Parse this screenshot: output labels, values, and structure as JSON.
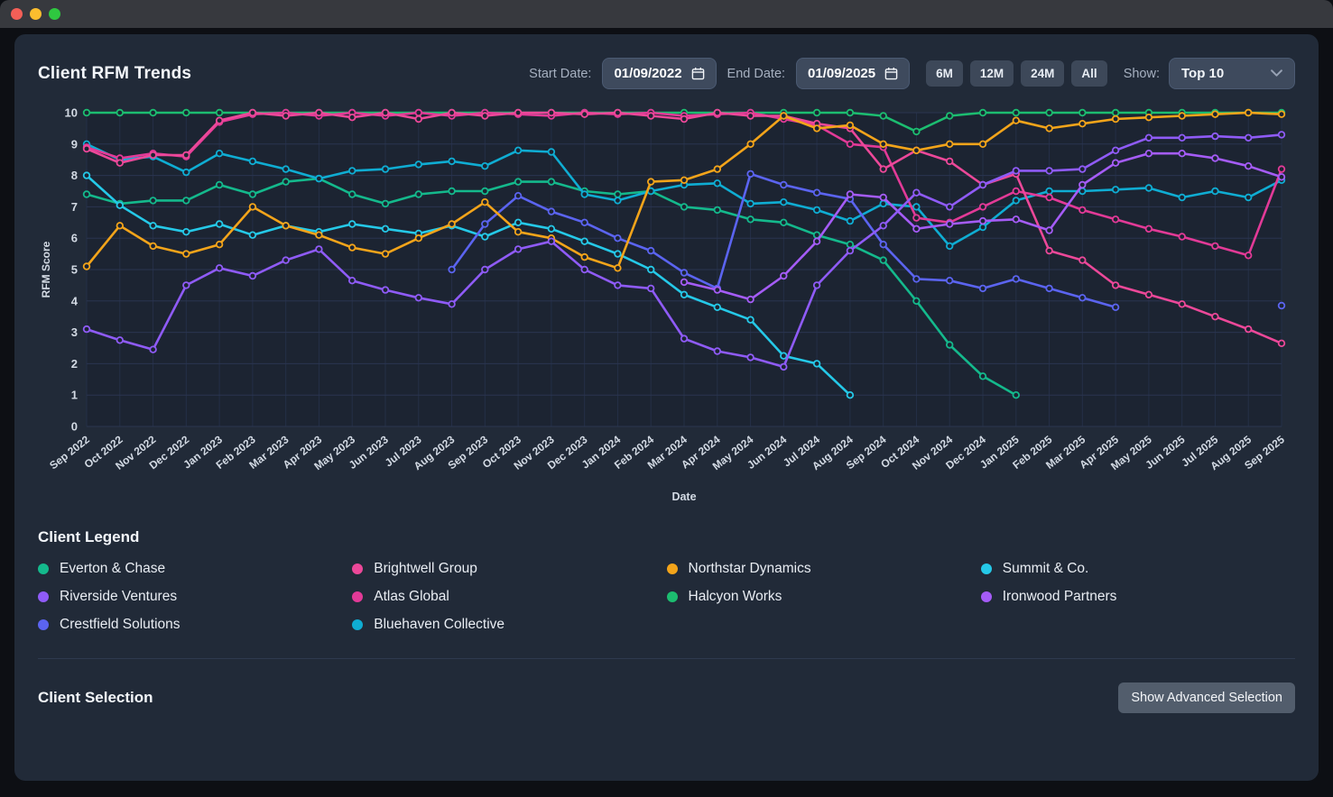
{
  "header": {
    "title": "Client RFM Trends",
    "start_date_label": "Start Date:",
    "start_date_value": "01/09/2022",
    "end_date_label": "End Date:",
    "end_date_value": "01/09/2025",
    "range_buttons": [
      "6M",
      "12M",
      "24M",
      "All"
    ],
    "show_label": "Show:",
    "show_value": "Top 10"
  },
  "chart_data": {
    "type": "line",
    "title": "Client RFM Trends",
    "xlabel": "Date",
    "ylabel": "RFM Score",
    "ylim": [
      0,
      10
    ],
    "yticks": [
      0,
      1,
      2,
      3,
      4,
      5,
      6,
      7,
      8,
      9,
      10
    ],
    "grid": true,
    "x": [
      "Sep 2022",
      "Oct 2022",
      "Nov 2022",
      "Dec 2022",
      "Jan 2023",
      "Feb 2023",
      "Mar 2023",
      "Apr 2023",
      "May 2023",
      "Jun 2023",
      "Jul 2023",
      "Aug 2023",
      "Sep 2023",
      "Oct 2023",
      "Nov 2023",
      "Dec 2023",
      "Jan 2024",
      "Feb 2024",
      "Mar 2024",
      "Apr 2024",
      "May 2024",
      "Jun 2024",
      "Jul 2024",
      "Aug 2024",
      "Sep 2024",
      "Oct 2024",
      "Nov 2024",
      "Dec 2024",
      "Jan 2025",
      "Feb 2025",
      "Mar 2025",
      "Apr 2025",
      "May 2025",
      "Jun 2025",
      "Jul 2025",
      "Aug 2025",
      "Sep 2025"
    ],
    "series": [
      {
        "name": "Halcyon Works",
        "color": "#1cbd70",
        "values": [
          10,
          10,
          10,
          10,
          10,
          10,
          10,
          10,
          10,
          10,
          10,
          10,
          10,
          10,
          10,
          10,
          10,
          10,
          10,
          10,
          10,
          10,
          10,
          10,
          9.9,
          9.4,
          9.9,
          10,
          10,
          10,
          10,
          10,
          10,
          10,
          10,
          10,
          10
        ]
      },
      {
        "name": "Everton & Chase",
        "color": "#14b98c",
        "values": [
          7.4,
          7.1,
          7.2,
          7.2,
          7.7,
          7.4,
          7.8,
          7.9,
          7.4,
          7.1,
          7.4,
          7.5,
          7.5,
          7.8,
          7.8,
          7.5,
          7.4,
          7.5,
          7.0,
          6.9,
          6.6,
          6.5,
          6.1,
          5.8,
          5.3,
          4.0,
          2.6,
          1.6,
          1.0,
          null,
          null,
          null,
          null,
          null,
          null,
          null,
          null
        ]
      },
      {
        "name": "Summit & Co.",
        "color": "#25c9e8",
        "values": [
          8.0,
          7.05,
          6.4,
          6.2,
          6.45,
          6.1,
          6.4,
          6.2,
          6.45,
          6.3,
          6.15,
          6.4,
          6.05,
          6.5,
          6.3,
          5.9,
          5.5,
          5.0,
          4.2,
          3.8,
          3.4,
          2.25,
          2.0,
          1.0,
          null,
          null,
          null,
          null,
          null,
          null,
          null,
          null,
          null,
          null,
          null,
          null,
          null
        ]
      },
      {
        "name": "Bluehaven Collective",
        "color": "#0fadd3",
        "values": [
          9.0,
          8.5,
          8.6,
          8.1,
          8.7,
          8.45,
          8.2,
          7.9,
          8.15,
          8.2,
          8.35,
          8.45,
          8.3,
          8.8,
          8.75,
          7.4,
          7.2,
          7.5,
          7.7,
          7.75,
          7.1,
          7.15,
          6.9,
          6.55,
          7.1,
          7.0,
          5.75,
          6.35,
          7.2,
          7.5,
          7.5,
          7.55,
          7.6,
          7.3,
          7.5,
          7.3,
          7.85
        ]
      },
      {
        "name": "Atlas Global",
        "color": "#e23a97",
        "values": [
          8.9,
          8.55,
          8.7,
          8.6,
          9.7,
          9.95,
          10,
          9.9,
          10,
          9.9,
          10,
          9.9,
          10,
          9.95,
          9.9,
          10,
          9.95,
          10,
          9.9,
          9.95,
          10,
          9.8,
          9.6,
          9.0,
          8.9,
          6.65,
          6.5,
          7.0,
          7.5,
          7.3,
          6.9,
          6.6,
          6.3,
          6.05,
          5.75,
          5.45,
          8.2
        ]
      },
      {
        "name": "Brightwell Group",
        "color": "#ec4899",
        "values": [
          8.85,
          8.4,
          8.65,
          8.65,
          9.75,
          10,
          9.9,
          10,
          9.85,
          10,
          9.8,
          10,
          9.9,
          10,
          10,
          9.95,
          10,
          9.9,
          9.8,
          10,
          9.9,
          9.9,
          9.65,
          9.5,
          8.2,
          8.8,
          8.45,
          7.7,
          8.05,
          5.6,
          5.3,
          4.5,
          4.2,
          3.9,
          3.5,
          3.1,
          2.65
        ]
      },
      {
        "name": "Crestfield Solutions",
        "color": "#5b64f0",
        "values": [
          null,
          null,
          null,
          null,
          null,
          null,
          null,
          null,
          null,
          null,
          null,
          5.0,
          6.45,
          7.35,
          6.85,
          6.5,
          6.0,
          5.6,
          4.9,
          4.4,
          8.05,
          7.7,
          7.45,
          7.25,
          5.8,
          4.7,
          4.65,
          4.4,
          4.7,
          4.4,
          4.1,
          3.8,
          null,
          null,
          null,
          null,
          3.85
        ]
      },
      {
        "name": "Northstar Dynamics",
        "color": "#f3a41a",
        "values": [
          5.1,
          6.4,
          5.75,
          5.5,
          5.8,
          7.0,
          6.4,
          6.1,
          5.7,
          5.5,
          6.0,
          6.45,
          7.15,
          6.2,
          6.0,
          5.4,
          5.05,
          7.8,
          7.85,
          8.2,
          9.0,
          9.9,
          9.5,
          9.6,
          9.0,
          8.8,
          9.0,
          9.0,
          9.75,
          9.5,
          9.65,
          9.8,
          9.85,
          9.9,
          9.95,
          10,
          9.95
        ]
      },
      {
        "name": "Ironwood Partners",
        "color": "#a55cf7",
        "values": [
          null,
          null,
          null,
          null,
          null,
          null,
          null,
          null,
          null,
          null,
          null,
          null,
          null,
          null,
          null,
          null,
          null,
          null,
          4.6,
          4.35,
          4.05,
          4.8,
          5.9,
          7.4,
          7.3,
          6.3,
          6.45,
          6.55,
          6.6,
          6.25,
          7.7,
          8.4,
          8.7,
          8.7,
          8.55,
          8.3,
          7.95
        ]
      },
      {
        "name": "Riverside Ventures",
        "color": "#8f5bf7",
        "values": [
          3.1,
          2.75,
          2.45,
          4.5,
          5.05,
          4.8,
          5.3,
          5.65,
          4.65,
          4.35,
          4.1,
          3.9,
          5.0,
          5.65,
          5.9,
          5.0,
          4.5,
          4.4,
          2.8,
          2.4,
          2.2,
          1.9,
          4.5,
          5.6,
          6.4,
          7.45,
          7.0,
          7.7,
          8.15,
          8.15,
          8.2,
          8.8,
          9.2,
          9.2,
          9.25,
          9.2,
          9.3
        ]
      }
    ]
  },
  "legend": {
    "title": "Client Legend",
    "items": [
      {
        "label": "Everton & Chase",
        "color": "#14b98c"
      },
      {
        "label": "Brightwell Group",
        "color": "#ec4899"
      },
      {
        "label": "Northstar Dynamics",
        "color": "#f3a41a"
      },
      {
        "label": "Summit & Co.",
        "color": "#25c9e8"
      },
      {
        "label": "Riverside Ventures",
        "color": "#8f5bf7"
      },
      {
        "label": "Atlas Global",
        "color": "#e23a97"
      },
      {
        "label": "Halcyon Works",
        "color": "#1cbd70"
      },
      {
        "label": "Ironwood Partners",
        "color": "#a55cf7"
      },
      {
        "label": "Crestfield Solutions",
        "color": "#5b64f0"
      },
      {
        "label": "Bluehaven Collective",
        "color": "#0fadd3"
      }
    ]
  },
  "selection": {
    "title": "Client Selection",
    "button_label": "Show Advanced Selection"
  },
  "colors": {
    "panel": "#212a38",
    "plot_bg": "#1c2432",
    "grid_h": "#2a3550",
    "grid_v": "#242f47",
    "tick_text": "#d3dae4"
  }
}
